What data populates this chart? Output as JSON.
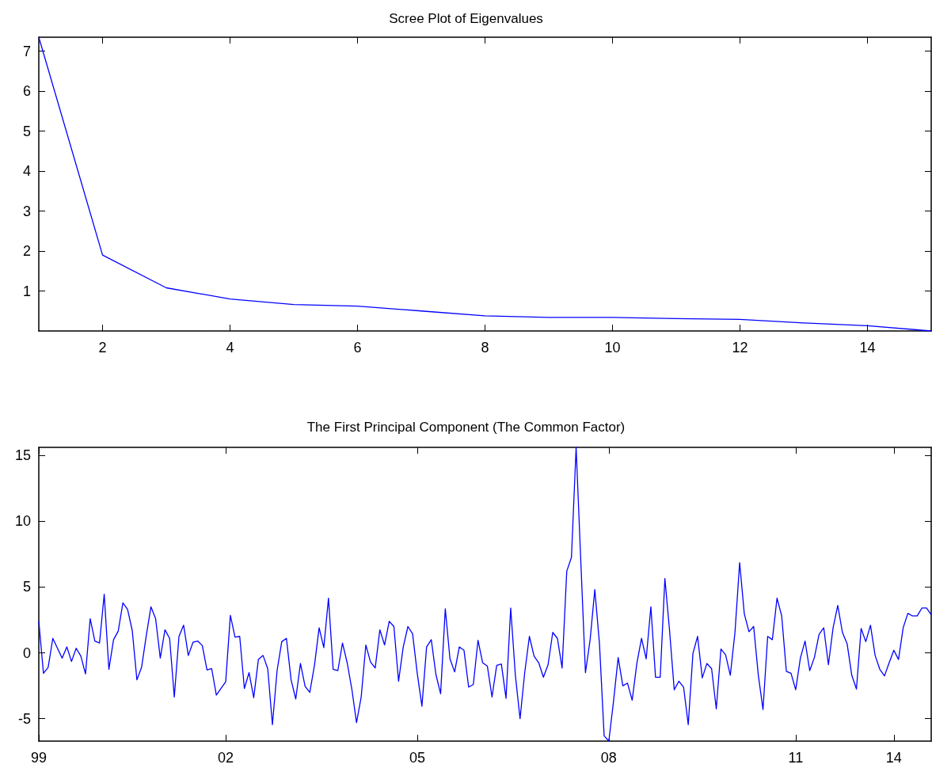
{
  "chart_data": [
    {
      "type": "line",
      "title": "Scree Plot of Eigenvalues",
      "x": [
        1,
        2,
        3,
        4,
        5,
        6,
        7,
        8,
        9,
        10,
        11,
        12,
        13,
        14,
        15
      ],
      "series": [
        {
          "color": "#0000ff",
          "values": [
            7.35,
            1.9,
            1.08,
            0.8,
            0.66,
            0.62,
            0.5,
            0.38,
            0.34,
            0.34,
            0.31,
            0.29,
            0.2,
            0.13,
            0.0
          ]
        }
      ],
      "xlim": [
        1,
        15
      ],
      "xticks": [
        2,
        4,
        6,
        8,
        10,
        12,
        14
      ],
      "ylim": [
        0,
        7.35
      ],
      "yticks": [
        1,
        2,
        3,
        4,
        5,
        6,
        7
      ],
      "grid": false,
      "marker": "none"
    },
    {
      "type": "line",
      "title": "The First Principal Component (The Common Factor)",
      "categories": [
        "99",
        null,
        null,
        null,
        null,
        null,
        null,
        null,
        null,
        null,
        null,
        null,
        null,
        null,
        null,
        null,
        null,
        null,
        null,
        null,
        null,
        null,
        null,
        null,
        null,
        null,
        null,
        null,
        null,
        null,
        null,
        null,
        null,
        null,
        null,
        null,
        null,
        null,
        null,
        null,
        "02",
        null,
        null,
        null,
        null,
        null,
        null,
        null,
        null,
        null,
        null,
        null,
        null,
        null,
        null,
        null,
        null,
        null,
        null,
        null,
        null,
        null,
        null,
        null,
        null,
        null,
        null,
        null,
        null,
        null,
        null,
        null,
        null,
        null,
        null,
        null,
        null,
        null,
        null,
        null,
        null,
        "05",
        null,
        null,
        null,
        null,
        null,
        null,
        null,
        null,
        null,
        null,
        null,
        null,
        null,
        null,
        null,
        null,
        null,
        null,
        null,
        null,
        null,
        null,
        null,
        null,
        null,
        null,
        null,
        null,
        null,
        null,
        null,
        null,
        null,
        null,
        null,
        null,
        null,
        null,
        null,
        null,
        "08",
        null,
        null,
        null,
        null,
        null,
        null,
        null,
        null,
        null,
        null,
        null,
        null,
        null,
        null,
        null,
        null,
        null,
        null,
        null,
        null,
        null,
        null,
        null,
        null,
        null,
        null,
        null,
        null,
        null,
        null,
        null,
        null,
        null,
        null,
        null,
        null,
        null,
        null,
        null,
        "11",
        null,
        null,
        null,
        null,
        null,
        null,
        null,
        null,
        null,
        null,
        null,
        null,
        null,
        null,
        null,
        null,
        null,
        null,
        null,
        null,
        "14",
        null,
        null,
        null,
        null,
        null,
        null,
        null,
        null
      ],
      "series": [
        {
          "color": "#0000ff",
          "values": [
            2.4,
            -1.55,
            -1.1,
            1.1,
            0.35,
            -0.4,
            0.45,
            -0.65,
            0.35,
            -0.25,
            -1.6,
            2.6,
            0.9,
            0.75,
            4.45,
            -1.25,
            1.0,
            1.65,
            3.8,
            3.3,
            1.7,
            -2.05,
            -1.1,
            1.3,
            3.5,
            2.6,
            -0.4,
            1.75,
            1.1,
            -3.35,
            1.25,
            2.1,
            -0.2,
            0.8,
            0.9,
            0.55,
            -1.3,
            -1.2,
            -3.2,
            -2.7,
            -2.2,
            2.85,
            1.2,
            1.25,
            -2.7,
            -1.5,
            -3.4,
            -0.5,
            -0.2,
            -1.2,
            -5.45,
            -1.35,
            0.85,
            1.1,
            -2.05,
            -3.5,
            -0.8,
            -2.55,
            -3.0,
            -0.95,
            1.9,
            0.4,
            4.15,
            -1.25,
            -1.35,
            0.75,
            -0.75,
            -2.75,
            -5.3,
            -3.35,
            0.6,
            -0.7,
            -1.15,
            1.75,
            0.6,
            2.4,
            2.0,
            -2.15,
            0.45,
            2.0,
            1.45,
            -1.55,
            -4.05,
            0.45,
            1.0,
            -1.65,
            -3.1,
            3.35,
            -0.45,
            -1.45,
            0.45,
            0.2,
            -2.6,
            -2.4,
            0.95,
            -0.75,
            -1.0,
            -3.35,
            -0.95,
            -0.85,
            -3.45,
            3.4,
            -1.7,
            -5.0,
            -1.5,
            1.25,
            -0.25,
            -0.75,
            -1.85,
            -0.9,
            1.55,
            1.1,
            -1.15,
            6.2,
            7.25,
            15.6,
            7.0,
            -1.5,
            1.0,
            4.8,
            0.7,
            -6.3,
            -6.7,
            -3.7,
            -0.35,
            -2.5,
            -2.3,
            -3.6,
            -0.8,
            1.1,
            -0.45,
            3.5,
            -1.85,
            -1.85,
            5.65,
            1.7,
            -2.8,
            -2.15,
            -2.6,
            -5.45,
            -0.05,
            1.25,
            -1.9,
            -0.8,
            -1.2,
            -4.25,
            0.3,
            -0.15,
            -1.7,
            1.55,
            6.85,
            2.95,
            1.6,
            2.0,
            -1.7,
            -4.3,
            1.25,
            1.0,
            4.15,
            2.8,
            -1.4,
            -1.55,
            -2.8,
            -0.4,
            0.9,
            -1.35,
            -0.35,
            1.4,
            1.9,
            -0.9,
            1.9,
            3.6,
            1.55,
            0.7,
            -1.7,
            -2.75,
            1.85,
            0.85,
            2.1,
            -0.2,
            -1.25,
            -1.75,
            -0.75,
            0.2,
            -0.5,
            1.9,
            3.0,
            2.8,
            2.8,
            3.4,
            3.4,
            2.9
          ]
        }
      ],
      "ylim": [
        -6.7,
        15.6
      ],
      "yticks": [
        -5,
        0,
        5,
        10,
        15
      ],
      "grid": false,
      "marker": "none"
    }
  ]
}
